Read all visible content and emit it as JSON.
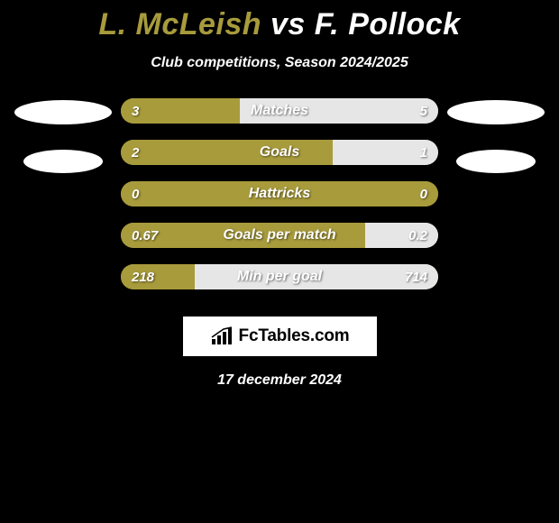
{
  "title": {
    "player1": "L. McLeish",
    "vs": "vs",
    "player2": "F. Pollock"
  },
  "subtitle": "Club competitions, Season 2024/2025",
  "colors": {
    "player1": "#a89b3c",
    "player2": "#ffffff",
    "player2_fill": "#e6e6e6",
    "background": "#000000"
  },
  "bars": [
    {
      "label": "Matches",
      "left_val": "3",
      "right_val": "5",
      "left_pct": 37.5,
      "right_pct": 62.5
    },
    {
      "label": "Goals",
      "left_val": "2",
      "right_val": "1",
      "left_pct": 66.7,
      "right_pct": 33.3
    },
    {
      "label": "Hattricks",
      "left_val": "0",
      "right_val": "0",
      "left_pct": 100,
      "right_pct": 0
    },
    {
      "label": "Goals per match",
      "left_val": "0.67",
      "right_val": "0.2",
      "left_pct": 77.0,
      "right_pct": 23.0
    },
    {
      "label": "Min per goal",
      "left_val": "218",
      "right_val": "714",
      "left_pct": 23.4,
      "right_pct": 76.6
    }
  ],
  "brand": "FcTables.com",
  "date": "17 december 2024"
}
